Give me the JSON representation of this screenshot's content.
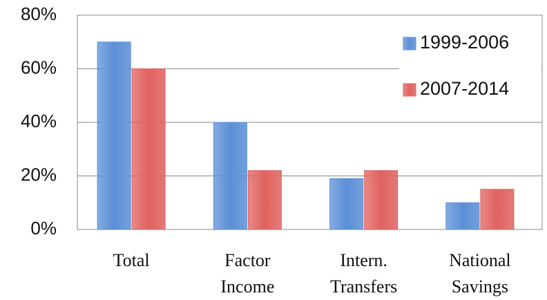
{
  "chart_data": {
    "type": "bar",
    "categories": [
      "Total",
      "Factor Income",
      "Intern. Transfers",
      "National Savings"
    ],
    "series": [
      {
        "name": "1999-2006",
        "color": "#5b8fd6",
        "values": [
          70,
          40,
          19,
          10
        ]
      },
      {
        "name": "2007-2014",
        "color": "#e0625f",
        "values": [
          60,
          22,
          22,
          15
        ]
      }
    ],
    "ylim": [
      0,
      80
    ],
    "yticks": [
      {
        "value": 0,
        "label": "0%"
      },
      {
        "value": 20,
        "label": "20%"
      },
      {
        "value": 40,
        "label": "40%"
      },
      {
        "value": 60,
        "label": "60%"
      },
      {
        "value": 80,
        "label": "80%"
      }
    ],
    "grid": true,
    "legend": "upper right"
  }
}
